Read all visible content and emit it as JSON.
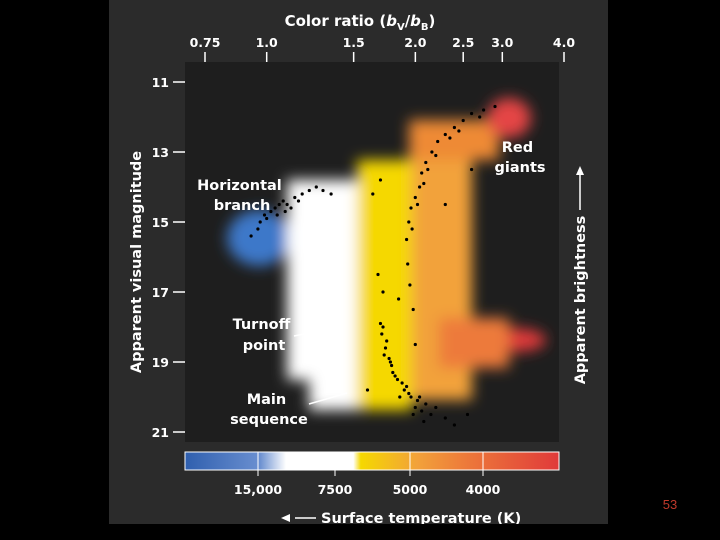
{
  "slide": {
    "number": "53"
  },
  "colors": {
    "background": "#000000",
    "panel": "#2b2b2b",
    "plot_bg": "#1e1e1e",
    "slide_number": "#c0392b"
  },
  "chart_data": {
    "type": "scatter",
    "title": "",
    "top_axis": {
      "label_prefix": "Color ratio (",
      "label_var": "b",
      "label_sub1": "V",
      "label_slash": "/",
      "label_var2": "b",
      "label_sub2": "B",
      "label_suffix": ")",
      "ticks": [
        "0.75",
        "1.0",
        "1.5",
        "2.0",
        "2.5",
        "3.0",
        "4.0"
      ],
      "log_scale": true
    },
    "y_axis": {
      "label": "Apparent visual magnitude",
      "ticks": [
        "11",
        "13",
        "15",
        "17",
        "19",
        "21"
      ],
      "range": [
        21.2,
        10.8
      ],
      "inverted": true
    },
    "right_axis": {
      "label": "Apparent brightness"
    },
    "bottom_axis": {
      "label": "Surface temperature (K)",
      "ticks": [
        "15,000",
        "7500",
        "5000",
        "4000"
      ]
    },
    "color_bar": [
      "#2f5fae",
      "#6a8fd0",
      "#ffffff",
      "#ffffff",
      "#f5d800",
      "#f2a23a",
      "#ed7a3a",
      "#e03a3a"
    ],
    "annotations": [
      {
        "lines": [
          "Red",
          "giants"
        ]
      },
      {
        "lines": [
          "Horizontal",
          "branch"
        ]
      },
      {
        "lines": [
          "Turnoff",
          "point"
        ]
      },
      {
        "lines": [
          "Main",
          "sequence"
        ]
      }
    ],
    "series": [
      {
        "values": [
          [
            0.96,
            15.2
          ],
          [
            0.97,
            15.0
          ],
          [
            0.99,
            14.8
          ],
          [
            1.0,
            14.9
          ],
          [
            1.02,
            14.7
          ],
          [
            1.04,
            14.6
          ],
          [
            1.06,
            14.5
          ],
          [
            1.08,
            14.4
          ],
          [
            1.1,
            14.5
          ],
          [
            1.12,
            14.6
          ],
          [
            1.14,
            14.3
          ],
          [
            1.18,
            14.2
          ],
          [
            1.22,
            14.1
          ],
          [
            1.05,
            14.8
          ],
          [
            0.93,
            15.4
          ],
          [
            1.09,
            14.7
          ],
          [
            1.16,
            14.4
          ],
          [
            1.26,
            14.0
          ],
          [
            1.3,
            14.1
          ],
          [
            1.35,
            14.2
          ],
          [
            1.72,
            18.0
          ],
          [
            1.75,
            18.4
          ],
          [
            1.73,
            18.8
          ],
          [
            1.78,
            19.0
          ],
          [
            1.8,
            19.3
          ],
          [
            1.84,
            19.5
          ],
          [
            1.9,
            19.8
          ],
          [
            1.96,
            20.0
          ],
          [
            2.02,
            20.1
          ],
          [
            2.1,
            20.2
          ],
          [
            1.71,
            18.2
          ],
          [
            1.74,
            18.6
          ],
          [
            1.77,
            18.9
          ],
          [
            1.82,
            19.4
          ],
          [
            1.88,
            19.6
          ],
          [
            1.94,
            19.9
          ],
          [
            2.0,
            20.3
          ],
          [
            2.06,
            20.4
          ],
          [
            2.15,
            20.5
          ],
          [
            1.86,
            20.0
          ],
          [
            1.7,
            17.9
          ],
          [
            1.79,
            19.1
          ],
          [
            1.92,
            19.7
          ],
          [
            2.04,
            20.0
          ],
          [
            2.2,
            20.3
          ],
          [
            2.3,
            20.6
          ],
          [
            1.98,
            20.5
          ],
          [
            2.08,
            20.7
          ],
          [
            2.0,
            18.5
          ],
          [
            1.98,
            17.5
          ],
          [
            1.95,
            16.8
          ],
          [
            1.93,
            16.2
          ],
          [
            1.92,
            15.5
          ],
          [
            1.94,
            15.0
          ],
          [
            1.96,
            14.6
          ],
          [
            2.0,
            14.3
          ],
          [
            2.04,
            14.0
          ],
          [
            2.06,
            13.6
          ],
          [
            2.1,
            13.3
          ],
          [
            2.16,
            13.0
          ],
          [
            2.22,
            12.7
          ],
          [
            2.3,
            12.5
          ],
          [
            2.4,
            12.3
          ],
          [
            2.5,
            12.1
          ],
          [
            2.6,
            11.9
          ],
          [
            2.75,
            11.8
          ],
          [
            2.9,
            11.7
          ],
          [
            1.97,
            15.2
          ],
          [
            2.02,
            14.5
          ],
          [
            2.08,
            13.9
          ],
          [
            2.12,
            13.5
          ],
          [
            2.2,
            13.1
          ],
          [
            2.35,
            12.6
          ],
          [
            2.45,
            12.4
          ],
          [
            2.7,
            12.0
          ],
          [
            1.68,
            16.5
          ],
          [
            1.72,
            17.0
          ],
          [
            1.85,
            17.2
          ],
          [
            1.64,
            14.2
          ],
          [
            1.7,
            13.8
          ],
          [
            2.3,
            14.5
          ],
          [
            2.6,
            13.5
          ],
          [
            2.4,
            20.8
          ],
          [
            2.55,
            20.5
          ],
          [
            1.6,
            19.8
          ]
        ]
      }
    ]
  }
}
